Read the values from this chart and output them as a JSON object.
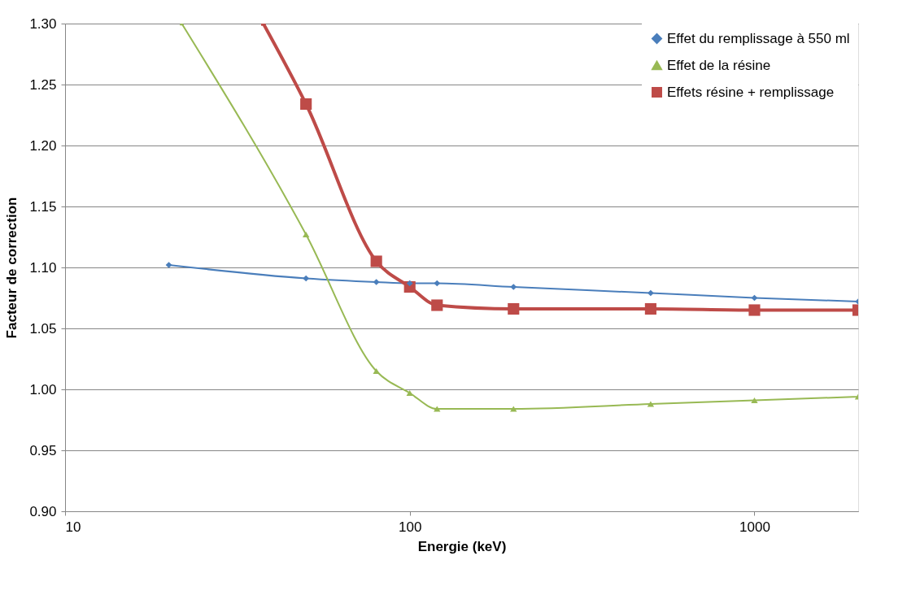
{
  "chart_data": {
    "type": "line",
    "xlabel": "Energie (keV)",
    "ylabel": "Facteur de correction",
    "log": "x",
    "xlim": [
      10,
      2000
    ],
    "xticks": [
      10,
      100,
      1000
    ],
    "ylim": [
      0.9,
      1.3
    ],
    "yticks": [
      {
        "value": 0.9,
        "label": "0.90"
      },
      0.95,
      {
        "value": 1.0,
        "label": "1.00"
      },
      1.05,
      {
        "value": 1.1,
        "label": "1.10"
      },
      1.15,
      {
        "value": 1.2,
        "label": "1.20"
      },
      1.25,
      {
        "value": 1.3,
        "label": "1.30"
      }
    ],
    "grid": "y",
    "legend": "top right",
    "series": [
      {
        "name": "Effet du remplissage à 550 ml",
        "color": "#4a7ebb",
        "marker": "diamond",
        "x": [
          20,
          50,
          80,
          100,
          120,
          200,
          500,
          1000,
          2000
        ],
        "values": [
          1.102,
          1.091,
          1.088,
          1.087,
          1.087,
          1.084,
          1.079,
          1.075,
          1.072
        ]
      },
      {
        "name": "Effet de la résine",
        "color": "#98b954",
        "marker": "triangle",
        "x": [
          21.8,
          50,
          80,
          100,
          120,
          200,
          500,
          1000,
          2000
        ],
        "values": [
          1.3,
          1.127,
          1.015,
          0.997,
          0.984,
          0.984,
          0.988,
          0.991,
          0.994
        ]
      },
      {
        "name": "Effets résine + remplissage",
        "color": "#be4b48",
        "marker": "square",
        "x": [
          37.6,
          50,
          80,
          100,
          120,
          200,
          500,
          1000,
          2000
        ],
        "values": [
          1.3,
          1.234,
          1.105,
          1.084,
          1.069,
          1.066,
          1.066,
          1.065,
          1.065
        ]
      }
    ]
  }
}
